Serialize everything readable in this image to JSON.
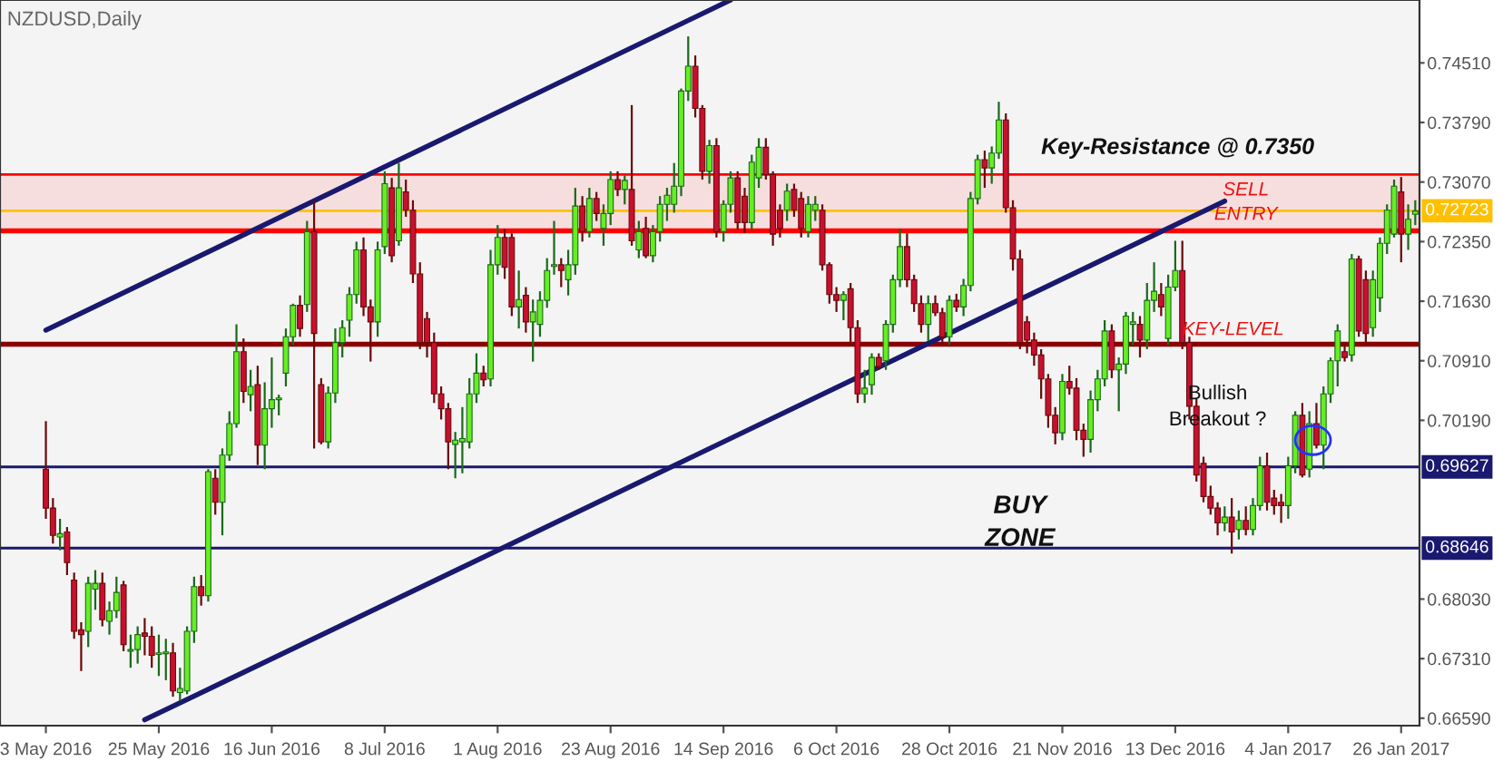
{
  "chart_data": {
    "type": "candlestick",
    "title": "NZDUSD,Daily",
    "categories": [
      "3 May 2016",
      null,
      null,
      null,
      null,
      null,
      null,
      null,
      null,
      null,
      null,
      null,
      null,
      null,
      null,
      null,
      "25 May 2016",
      null,
      null,
      null,
      null,
      null,
      null,
      null,
      null,
      null,
      null,
      null,
      null,
      null,
      null,
      null,
      "16 Jun 2016",
      null,
      null,
      null,
      null,
      null,
      null,
      null,
      null,
      null,
      null,
      null,
      null,
      null,
      null,
      null,
      "8 Jul 2016",
      null,
      null,
      null,
      null,
      null,
      null,
      null,
      null,
      null,
      null,
      null,
      null,
      null,
      null,
      null,
      "1 Aug 2016",
      null,
      null,
      null,
      null,
      null,
      null,
      null,
      null,
      null,
      null,
      null,
      null,
      null,
      null,
      null,
      "23 Aug 2016",
      null,
      null,
      null,
      null,
      null,
      null,
      null,
      null,
      null,
      null,
      null,
      null,
      null,
      null,
      null,
      "14 Sep 2016",
      null,
      null,
      null,
      null,
      null,
      null,
      null,
      null,
      null,
      null,
      null,
      null,
      null,
      null,
      null,
      "6 Oct 2016",
      null,
      null,
      null,
      null,
      null,
      null,
      null,
      null,
      null,
      null,
      null,
      null,
      null,
      null,
      null,
      "28 Oct 2016",
      null,
      null,
      null,
      null,
      null,
      null,
      null,
      null,
      null,
      null,
      null,
      null,
      null,
      null,
      null,
      "21 Nov 2016",
      null,
      null,
      null,
      null,
      null,
      null,
      null,
      null,
      null,
      null,
      null,
      null,
      null,
      null,
      null,
      "13 Dec 2016",
      null,
      null,
      null,
      null,
      null,
      null,
      null,
      null,
      null,
      null,
      null,
      null,
      null,
      null,
      null,
      "4 Jan 2017",
      null,
      null,
      null,
      null,
      null,
      null,
      null,
      null,
      null,
      null,
      null,
      null,
      null,
      null,
      null,
      "26 Jan 2017",
      null,
      null
    ],
    "ohlc": [
      [
        0.696,
        0.7018,
        0.69,
        0.6913
      ],
      [
        0.6913,
        0.6925,
        0.687,
        0.688
      ],
      [
        0.6878,
        0.69,
        0.6862,
        0.6882
      ],
      [
        0.6884,
        0.689,
        0.6832,
        0.6847
      ],
      [
        0.6826,
        0.6835,
        0.6755,
        0.6764
      ],
      [
        0.6766,
        0.6775,
        0.6716,
        0.676
      ],
      [
        0.6764,
        0.683,
        0.6745,
        0.6822
      ],
      [
        0.6815,
        0.6838,
        0.679,
        0.6822
      ],
      [
        0.6822,
        0.6835,
        0.677,
        0.6778
      ],
      [
        0.6776,
        0.68,
        0.676,
        0.6789
      ],
      [
        0.6789,
        0.683,
        0.678,
        0.6811
      ],
      [
        0.682,
        0.6825,
        0.674,
        0.6748
      ],
      [
        0.674,
        0.676,
        0.672,
        0.6742
      ],
      [
        0.6742,
        0.677,
        0.6725,
        0.676
      ],
      [
        0.6762,
        0.678,
        0.6735,
        0.6758
      ],
      [
        0.6758,
        0.677,
        0.672,
        0.6735
      ],
      [
        0.6736,
        0.676,
        0.671,
        0.6738
      ],
      [
        0.6737,
        0.6755,
        0.6705,
        0.6739
      ],
      [
        0.6738,
        0.675,
        0.6685,
        0.6692
      ],
      [
        0.669,
        0.672,
        0.668,
        0.6695
      ],
      [
        0.6692,
        0.677,
        0.6688,
        0.6764
      ],
      [
        0.6764,
        0.683,
        0.675,
        0.6818
      ],
      [
        0.6818,
        0.6832,
        0.6795,
        0.6807
      ],
      [
        0.6807,
        0.696,
        0.68,
        0.6957
      ],
      [
        0.6949,
        0.696,
        0.6905,
        0.692
      ],
      [
        0.692,
        0.6985,
        0.688,
        0.6977
      ],
      [
        0.6977,
        0.703,
        0.697,
        0.7015
      ],
      [
        0.7015,
        0.7135,
        0.701,
        0.7102
      ],
      [
        0.7102,
        0.7118,
        0.704,
        0.7054
      ],
      [
        0.705,
        0.708,
        0.703,
        0.706
      ],
      [
        0.7062,
        0.7085,
        0.6965,
        0.6989
      ],
      [
        0.6989,
        0.7065,
        0.696,
        0.7033
      ],
      [
        0.7033,
        0.7095,
        0.701,
        0.7044
      ],
      [
        0.7044,
        0.705,
        0.7025,
        0.7046
      ],
      [
        0.7076,
        0.713,
        0.706,
        0.712
      ],
      [
        0.712,
        0.716,
        0.711,
        0.7158
      ],
      [
        0.7158,
        0.717,
        0.712,
        0.713
      ],
      [
        0.7159,
        0.726,
        0.715,
        0.7247
      ],
      [
        0.7247,
        0.7285,
        0.6985,
        0.7124
      ],
      [
        0.7062,
        0.707,
        0.699,
        0.6993
      ],
      [
        0.6993,
        0.706,
        0.6985,
        0.7052
      ],
      [
        0.7052,
        0.713,
        0.704,
        0.7113
      ],
      [
        0.7113,
        0.714,
        0.7095,
        0.7131
      ],
      [
        0.714,
        0.718,
        0.712,
        0.7171
      ],
      [
        0.7171,
        0.7235,
        0.716,
        0.7225
      ],
      [
        0.7225,
        0.724,
        0.7145,
        0.7156
      ],
      [
        0.7156,
        0.7165,
        0.709,
        0.7138
      ],
      [
        0.7138,
        0.7235,
        0.712,
        0.7225
      ],
      [
        0.7229,
        0.732,
        0.722,
        0.7305
      ],
      [
        0.73,
        0.7312,
        0.721,
        0.7218
      ],
      [
        0.7236,
        0.733,
        0.723,
        0.73
      ],
      [
        0.7295,
        0.731,
        0.7265,
        0.7273
      ],
      [
        0.7273,
        0.7285,
        0.7185,
        0.7196
      ],
      [
        0.7196,
        0.721,
        0.7105,
        0.7113
      ],
      [
        0.7142,
        0.715,
        0.7095,
        0.7113
      ],
      [
        0.7113,
        0.7125,
        0.704,
        0.7051
      ],
      [
        0.7051,
        0.706,
        0.702,
        0.7033
      ],
      [
        0.7033,
        0.704,
        0.696,
        0.6993
      ],
      [
        0.699,
        0.7005,
        0.6949,
        0.6995
      ],
      [
        0.6993,
        0.7035,
        0.6955,
        0.6997
      ],
      [
        0.6993,
        0.707,
        0.6985,
        0.7051
      ],
      [
        0.7051,
        0.71,
        0.704,
        0.7076
      ],
      [
        0.7076,
        0.7085,
        0.706,
        0.7068
      ],
      [
        0.7069,
        0.7225,
        0.706,
        0.7207
      ],
      [
        0.7207,
        0.7255,
        0.7195,
        0.724
      ],
      [
        0.724,
        0.725,
        0.719,
        0.7204
      ],
      [
        0.724,
        0.7245,
        0.7145,
        0.7156
      ],
      [
        0.7156,
        0.72,
        0.713,
        0.7165
      ],
      [
        0.717,
        0.718,
        0.7125,
        0.7138
      ],
      [
        0.7138,
        0.7165,
        0.709,
        0.715
      ],
      [
        0.7135,
        0.7175,
        0.712,
        0.7164
      ],
      [
        0.7164,
        0.7215,
        0.7155,
        0.72
      ],
      [
        0.7205,
        0.726,
        0.7195,
        0.7207
      ],
      [
        0.7207,
        0.7215,
        0.718,
        0.72
      ],
      [
        0.7189,
        0.7225,
        0.717,
        0.7207
      ],
      [
        0.7207,
        0.73,
        0.7195,
        0.7278
      ],
      [
        0.7278,
        0.729,
        0.7235,
        0.7247
      ],
      [
        0.7247,
        0.73,
        0.724,
        0.7287
      ],
      [
        0.7287,
        0.7295,
        0.726,
        0.7269
      ],
      [
        0.7251,
        0.728,
        0.723,
        0.7269
      ],
      [
        0.7269,
        0.732,
        0.7255,
        0.731
      ],
      [
        0.731,
        0.732,
        0.729,
        0.7298
      ],
      [
        0.7298,
        0.7315,
        0.728,
        0.7309
      ],
      [
        0.7298,
        0.74,
        0.723,
        0.7236
      ],
      [
        0.7225,
        0.726,
        0.7215,
        0.7247
      ],
      [
        0.7251,
        0.7265,
        0.7215,
        0.7218
      ],
      [
        0.7218,
        0.7255,
        0.721,
        0.7247
      ],
      [
        0.7247,
        0.729,
        0.7235,
        0.728
      ],
      [
        0.728,
        0.73,
        0.726,
        0.7291
      ],
      [
        0.728,
        0.733,
        0.727,
        0.7302
      ],
      [
        0.7302,
        0.742,
        0.729,
        0.7417
      ],
      [
        0.7417,
        0.7483,
        0.7405,
        0.7447
      ],
      [
        0.7447,
        0.746,
        0.7385,
        0.7396
      ],
      [
        0.7396,
        0.74,
        0.731,
        0.732
      ],
      [
        0.732,
        0.7358,
        0.7305,
        0.7351
      ],
      [
        0.7351,
        0.736,
        0.724,
        0.7247
      ],
      [
        0.7247,
        0.7285,
        0.7235,
        0.728
      ],
      [
        0.728,
        0.732,
        0.727,
        0.7312
      ],
      [
        0.7312,
        0.732,
        0.725,
        0.7258
      ],
      [
        0.729,
        0.73,
        0.7245,
        0.7258
      ],
      [
        0.7258,
        0.734,
        0.725,
        0.7331
      ],
      [
        0.7312,
        0.736,
        0.73,
        0.7349
      ],
      [
        0.7349,
        0.736,
        0.731,
        0.7316
      ],
      [
        0.7316,
        0.732,
        0.723,
        0.7244
      ],
      [
        0.7273,
        0.728,
        0.724,
        0.7251
      ],
      [
        0.7273,
        0.7305,
        0.726,
        0.7296
      ],
      [
        0.7298,
        0.7305,
        0.7265,
        0.7273
      ],
      [
        0.7287,
        0.7295,
        0.724,
        0.7251
      ],
      [
        0.7247,
        0.729,
        0.724,
        0.728
      ],
      [
        0.7273,
        0.729,
        0.726,
        0.728
      ],
      [
        0.7273,
        0.728,
        0.72,
        0.7207
      ],
      [
        0.7207,
        0.721,
        0.716,
        0.7171
      ],
      [
        0.7171,
        0.718,
        0.715,
        0.7164
      ],
      [
        0.7164,
        0.7175,
        0.714,
        0.7171
      ],
      [
        0.7178,
        0.7185,
        0.711,
        0.7131
      ],
      [
        0.7131,
        0.714,
        0.704,
        0.7051
      ],
      [
        0.7051,
        0.708,
        0.704,
        0.7058
      ],
      [
        0.7062,
        0.71,
        0.705,
        0.7095
      ],
      [
        0.7095,
        0.71,
        0.708,
        0.7084
      ],
      [
        0.7091,
        0.714,
        0.708,
        0.7135
      ],
      [
        0.7135,
        0.7195,
        0.7125,
        0.7189
      ],
      [
        0.7189,
        0.725,
        0.718,
        0.7229
      ],
      [
        0.7229,
        0.7245,
        0.718,
        0.7189
      ],
      [
        0.7189,
        0.7195,
        0.715,
        0.716
      ],
      [
        0.716,
        0.717,
        0.7125,
        0.7135
      ],
      [
        0.7135,
        0.717,
        0.7115,
        0.716
      ],
      [
        0.716,
        0.717,
        0.7145,
        0.7149
      ],
      [
        0.7149,
        0.7155,
        0.711,
        0.712
      ],
      [
        0.712,
        0.717,
        0.711,
        0.7164
      ],
      [
        0.7164,
        0.7172,
        0.715,
        0.7156
      ],
      [
        0.7156,
        0.719,
        0.7145,
        0.7182
      ],
      [
        0.7182,
        0.7295,
        0.7175,
        0.7287
      ],
      [
        0.7287,
        0.734,
        0.728,
        0.7334
      ],
      [
        0.7334,
        0.7345,
        0.73,
        0.7324
      ],
      [
        0.7324,
        0.735,
        0.7305,
        0.7342
      ],
      [
        0.7342,
        0.7404,
        0.7335,
        0.7382
      ],
      [
        0.7382,
        0.739,
        0.727,
        0.7276
      ],
      [
        0.7276,
        0.7285,
        0.72,
        0.7214
      ],
      [
        0.7214,
        0.7225,
        0.7105,
        0.7113
      ],
      [
        0.7138,
        0.7145,
        0.71,
        0.7116
      ],
      [
        0.7116,
        0.7125,
        0.7085,
        0.7098
      ],
      [
        0.7098,
        0.7105,
        0.7045,
        0.7069
      ],
      [
        0.7069,
        0.7075,
        0.701,
        0.7025
      ],
      [
        0.7025,
        0.7035,
        0.699,
        0.7004
      ],
      [
        0.7004,
        0.7075,
        0.6995,
        0.7066
      ],
      [
        0.7066,
        0.7085,
        0.705,
        0.7058
      ],
      [
        0.7058,
        0.707,
        0.6995,
        0.7007
      ],
      [
        0.7007,
        0.7015,
        0.6975,
        0.6996
      ],
      [
        0.6996,
        0.7055,
        0.698,
        0.7044
      ],
      [
        0.7044,
        0.708,
        0.703,
        0.7069
      ],
      [
        0.7069,
        0.714,
        0.706,
        0.7127
      ],
      [
        0.7127,
        0.7135,
        0.707,
        0.708
      ],
      [
        0.708,
        0.7095,
        0.703,
        0.7087
      ],
      [
        0.7087,
        0.715,
        0.7075,
        0.7145
      ],
      [
        0.7135,
        0.715,
        0.711,
        0.7138
      ],
      [
        0.7135,
        0.7145,
        0.7095,
        0.7116
      ],
      [
        0.7116,
        0.7185,
        0.7105,
        0.7164
      ],
      [
        0.7164,
        0.721,
        0.715,
        0.7175
      ],
      [
        0.7171,
        0.7185,
        0.7145,
        0.7156
      ],
      [
        0.7118,
        0.7195,
        0.711,
        0.718
      ],
      [
        0.718,
        0.7236,
        0.7175,
        0.72
      ],
      [
        0.72,
        0.7236,
        0.7105,
        0.7113
      ],
      [
        0.7113,
        0.712,
        0.702,
        0.7036
      ],
      [
        0.7036,
        0.7045,
        0.6945,
        0.6953
      ],
      [
        0.6967,
        0.6975,
        0.692,
        0.6927
      ],
      [
        0.6927,
        0.694,
        0.6905,
        0.6913
      ],
      [
        0.6913,
        0.692,
        0.688,
        0.6895
      ],
      [
        0.6895,
        0.6915,
        0.6885,
        0.6902
      ],
      [
        0.6902,
        0.6925,
        0.6858,
        0.6884
      ],
      [
        0.6887,
        0.691,
        0.6875,
        0.6898
      ],
      [
        0.6898,
        0.6915,
        0.688,
        0.6887
      ],
      [
        0.6887,
        0.6925,
        0.688,
        0.6916
      ],
      [
        0.6916,
        0.6975,
        0.691,
        0.6964
      ],
      [
        0.6964,
        0.698,
        0.691,
        0.692
      ],
      [
        0.6925,
        0.6935,
        0.6905,
        0.6916
      ],
      [
        0.692,
        0.693,
        0.6895,
        0.6916
      ],
      [
        0.6916,
        0.6975,
        0.69,
        0.6964
      ],
      [
        0.6964,
        0.703,
        0.6955,
        0.7025
      ],
      [
        0.7025,
        0.704,
        0.695,
        0.6953
      ],
      [
        0.696,
        0.703,
        0.695,
        0.7015
      ],
      [
        0.7015,
        0.704,
        0.6985,
        0.6989
      ],
      [
        0.6989,
        0.706,
        0.696,
        0.7051
      ],
      [
        0.7051,
        0.7095,
        0.704,
        0.7091
      ],
      [
        0.7091,
        0.7135,
        0.706,
        0.7127
      ],
      [
        0.7102,
        0.711,
        0.709,
        0.7095
      ],
      [
        0.7098,
        0.722,
        0.709,
        0.7214
      ],
      [
        0.7214,
        0.7218,
        0.712,
        0.7127
      ],
      [
        0.7189,
        0.72,
        0.711,
        0.7124
      ],
      [
        0.7131,
        0.72,
        0.712,
        0.7189
      ],
      [
        0.7167,
        0.724,
        0.715,
        0.7233
      ],
      [
        0.7233,
        0.728,
        0.722,
        0.7273
      ],
      [
        0.7244,
        0.731,
        0.724,
        0.7302
      ],
      [
        0.7295,
        0.7313,
        0.721,
        0.7244
      ],
      [
        0.7244,
        0.728,
        0.7225,
        0.7262
      ],
      [
        0.7268,
        0.7285,
        0.7255,
        0.7272
      ]
    ],
    "series": [
      {
        "type": "line",
        "color": "#191970",
        "values": [
          0.7128,
          null,
          null,
          null,
          null,
          null,
          null,
          null,
          null,
          null,
          null,
          null,
          null,
          null,
          null,
          null,
          null,
          null,
          null,
          null,
          null,
          null,
          null,
          null,
          null,
          null,
          null,
          null,
          null,
          null,
          null,
          null,
          null,
          null,
          null,
          null,
          null,
          null,
          null,
          null,
          null,
          null,
          null,
          null,
          null,
          null,
          null,
          null,
          null,
          null,
          null,
          null,
          null,
          null,
          null,
          null,
          null,
          null,
          null,
          null,
          null,
          null,
          null,
          null,
          null,
          null,
          null,
          null,
          null,
          null,
          null,
          null,
          null,
          null,
          null,
          null,
          null,
          null,
          null,
          null,
          null,
          null,
          null,
          null,
          null,
          null,
          null,
          null,
          null,
          null,
          null,
          null,
          null,
          null,
          null,
          null,
          null,
          0.7527,
          null,
          null,
          null,
          null,
          null,
          null,
          null,
          null,
          null,
          null,
          null,
          null,
          null,
          null,
          null,
          null,
          null,
          null,
          null,
          null,
          null,
          null,
          null,
          null,
          null,
          null,
          null,
          null,
          null,
          null,
          null,
          null,
          null,
          null,
          null,
          null,
          null,
          null,
          null,
          null,
          null,
          null,
          null,
          null,
          null,
          null,
          null,
          null,
          null,
          null,
          null,
          null,
          null,
          null,
          null,
          null,
          null,
          null,
          null,
          null,
          null,
          null,
          null,
          null,
          null,
          null,
          null,
          null,
          null,
          null,
          null,
          null,
          null,
          null,
          null,
          null,
          null,
          null,
          null,
          null,
          null,
          null,
          null,
          null,
          null,
          null,
          null,
          null,
          null,
          null,
          null,
          null,
          null,
          null,
          null,
          null,
          null
        ]
      },
      {
        "type": "line",
        "color": "#191970",
        "values": [
          null,
          null,
          null,
          null,
          null,
          null,
          null,
          null,
          null,
          null,
          null,
          null,
          null,
          null,
          0.6657,
          null,
          null,
          null,
          null,
          null,
          null,
          null,
          null,
          null,
          null,
          null,
          null,
          null,
          null,
          null,
          null,
          null,
          null,
          null,
          null,
          null,
          null,
          null,
          null,
          null,
          null,
          null,
          null,
          null,
          null,
          null,
          null,
          null,
          null,
          null,
          null,
          null,
          null,
          null,
          null,
          null,
          null,
          null,
          null,
          null,
          null,
          null,
          null,
          null,
          null,
          null,
          null,
          null,
          null,
          null,
          null,
          null,
          null,
          null,
          null,
          null,
          null,
          null,
          null,
          null,
          null,
          null,
          null,
          null,
          null,
          null,
          null,
          null,
          null,
          null,
          null,
          null,
          null,
          null,
          null,
          null,
          null,
          null,
          null,
          null,
          null,
          null,
          null,
          null,
          null,
          null,
          null,
          null,
          null,
          null,
          null,
          null,
          null,
          null,
          null,
          null,
          null,
          null,
          null,
          null,
          null,
          null,
          null,
          null,
          null,
          null,
          null,
          null,
          null,
          null,
          null,
          null,
          null,
          null,
          null,
          null,
          null,
          null,
          null,
          null,
          null,
          null,
          null,
          null,
          null,
          null,
          null,
          null,
          null,
          null,
          null,
          null,
          null,
          null,
          null,
          null,
          null,
          null,
          null,
          null,
          null,
          null,
          null,
          null,
          null,
          null,
          null,
          0.7284,
          null,
          null,
          null,
          null,
          null,
          null,
          null,
          null,
          null,
          null,
          null,
          null,
          null,
          null,
          null,
          null,
          null,
          null,
          null,
          null,
          null,
          null,
          null,
          null,
          null,
          null,
          null
        ]
      }
    ],
    "ylim": [
      0.665,
      0.7527
    ],
    "yticks": [
      {
        "value": 0.6659,
        "label": "0.66590"
      },
      {
        "value": 0.6731,
        "label": "0.67310"
      },
      {
        "value": 0.6803,
        "label": "0.68030"
      },
      {
        "value": 0.7019,
        "label": "0.70190"
      },
      {
        "value": 0.7091,
        "label": "0.70910"
      },
      {
        "value": 0.7163,
        "label": "0.71630"
      },
      {
        "value": 0.7235,
        "label": "0.72350"
      },
      {
        "value": 0.7307,
        "label": "0.73070"
      },
      {
        "value": 0.7379,
        "label": "0.73790"
      },
      {
        "value": 0.7451,
        "label": "0.74510"
      }
    ],
    "bands": [
      {
        "axis": "y",
        "from": 0.7248,
        "to": 0.7316,
        "color": "#f6dede"
      }
    ],
    "ref_lines": [
      {
        "axis": "y",
        "value": 0.7316,
        "label": null,
        "color": "#ff0000"
      },
      {
        "axis": "y",
        "value": 0.7248,
        "label": null,
        "color": "#ff0000"
      },
      {
        "axis": "y",
        "value": 0.7111,
        "label": null,
        "color": "#8b0000"
      },
      {
        "axis": "y",
        "value": 0.72723,
        "label": "0.72723",
        "color": "#ffc000"
      },
      {
        "axis": "y",
        "value": 0.69627,
        "label": "0.69627",
        "color": "#191970"
      },
      {
        "axis": "y",
        "value": 0.68646,
        "label": "0.68646",
        "color": "#191970"
      }
    ],
    "annotations": [
      "Key-Resistance @ 0.7350",
      "SELL\nENTRY",
      "KEY-LEVEL",
      "BUY\nZONE",
      "Bullish\nBreakout ?"
    ],
    "grid": false,
    "legend": false
  }
}
